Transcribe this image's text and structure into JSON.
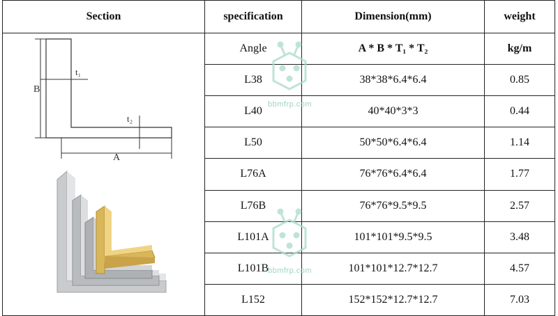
{
  "table": {
    "headers": {
      "section": "Section",
      "specification": "specification",
      "dimension": "Dimension(mm)",
      "weight": "weight"
    },
    "units_row": {
      "specification": "Angle",
      "dimension": "A * B * T₁ * T₂",
      "weight": "kg/m"
    },
    "rows": [
      {
        "spec": "L38",
        "dimension": "38*38*6.4*6.4",
        "weight": "0.85"
      },
      {
        "spec": "L40",
        "dimension": "40*40*3*3",
        "weight": "0.44"
      },
      {
        "spec": "L50",
        "dimension": "50*50*6.4*6.4",
        "weight": "1.14"
      },
      {
        "spec": "L76A",
        "dimension": "76*76*6.4*6.4",
        "weight": "1.77"
      },
      {
        "spec": "L76B",
        "dimension": "76*76*9.5*9.5",
        "weight": "2.57"
      },
      {
        "spec": "L101A",
        "dimension": "101*101*9.5*9.5",
        "weight": "3.48"
      },
      {
        "spec": "L101B",
        "dimension": "101*101*12.7*12.7",
        "weight": "4.57"
      },
      {
        "spec": "L152",
        "dimension": "152*152*12.7*12.7",
        "weight": "7.03"
      }
    ]
  },
  "diagram": {
    "label_a": "A",
    "label_b": "B",
    "label_t1": "t₁",
    "label_t2": "t₂"
  },
  "watermark": {
    "text": "bbmfrp.com"
  }
}
